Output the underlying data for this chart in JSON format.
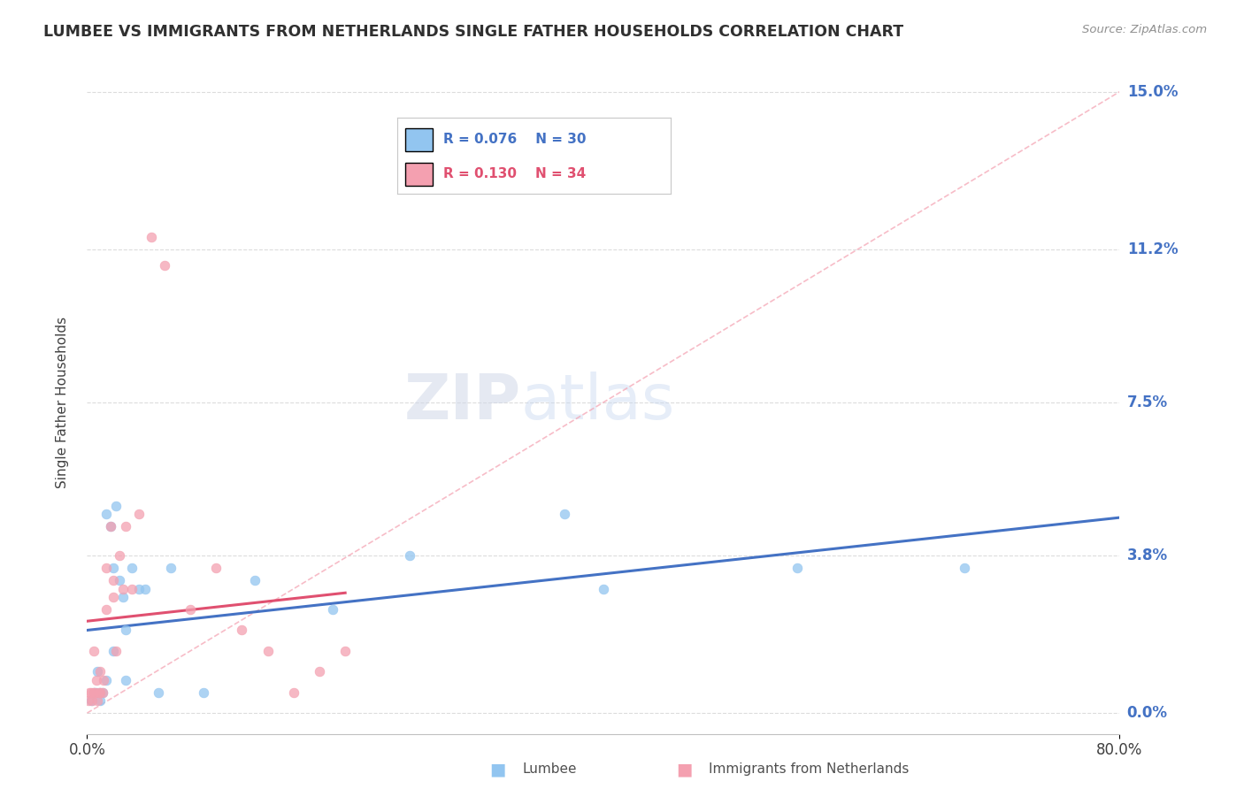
{
  "title": "LUMBEE VS IMMIGRANTS FROM NETHERLANDS SINGLE FATHER HOUSEHOLDS CORRELATION CHART",
  "source": "Source: ZipAtlas.com",
  "ylabel": "Single Father Households",
  "yticks_labels": [
    "0.0%",
    "3.8%",
    "7.5%",
    "11.2%",
    "15.0%"
  ],
  "ytick_vals": [
    0.0,
    3.8,
    7.5,
    11.2,
    15.0
  ],
  "xlim": [
    0.0,
    80.0
  ],
  "ylim": [
    -0.5,
    15.5
  ],
  "ymin_data": 0.0,
  "ymax_data": 15.0,
  "legend_lumbee_R": "R = 0.076",
  "legend_lumbee_N": "N = 30",
  "legend_netherlands_R": "R = 0.130",
  "legend_netherlands_N": "N = 34",
  "lumbee_color": "#92C5F0",
  "netherlands_color": "#F4A0B0",
  "lumbee_line_color": "#4472C4",
  "netherlands_line_color": "#E05070",
  "diag_line_color": "#F4A0B0",
  "watermark_zip": "ZIP",
  "watermark_atlas": "atlas",
  "lumbee_x": [
    0.3,
    0.5,
    0.7,
    0.8,
    1.0,
    1.2,
    1.5,
    1.8,
    2.0,
    2.2,
    2.5,
    2.8,
    3.0,
    3.5,
    4.0,
    5.5,
    6.5,
    9.0,
    13.0,
    19.0,
    25.0,
    37.0,
    40.0,
    55.0,
    68.0,
    1.0,
    1.5,
    2.0,
    3.0,
    4.5
  ],
  "lumbee_y": [
    0.3,
    0.5,
    0.5,
    1.0,
    0.3,
    0.5,
    4.8,
    4.5,
    3.5,
    5.0,
    3.2,
    2.8,
    0.8,
    3.5,
    3.0,
    0.5,
    3.5,
    0.5,
    3.2,
    2.5,
    3.8,
    4.8,
    3.0,
    3.5,
    3.5,
    0.5,
    0.8,
    1.5,
    2.0,
    3.0
  ],
  "netherlands_x": [
    0.1,
    0.2,
    0.3,
    0.4,
    0.5,
    0.5,
    0.6,
    0.7,
    0.8,
    0.9,
    1.0,
    1.0,
    1.2,
    1.3,
    1.5,
    1.5,
    1.8,
    2.0,
    2.0,
    2.2,
    2.5,
    2.8,
    3.0,
    3.5,
    4.0,
    5.0,
    6.0,
    8.0,
    10.0,
    12.0,
    14.0,
    16.0,
    18.0,
    20.0
  ],
  "netherlands_y": [
    0.3,
    0.5,
    0.5,
    0.3,
    1.5,
    0.5,
    0.5,
    0.8,
    0.3,
    0.5,
    0.5,
    1.0,
    0.5,
    0.8,
    2.5,
    3.5,
    4.5,
    2.8,
    3.2,
    1.5,
    3.8,
    3.0,
    4.5,
    3.0,
    4.8,
    11.5,
    10.8,
    2.5,
    3.5,
    2.0,
    1.5,
    0.5,
    1.0,
    1.5
  ]
}
